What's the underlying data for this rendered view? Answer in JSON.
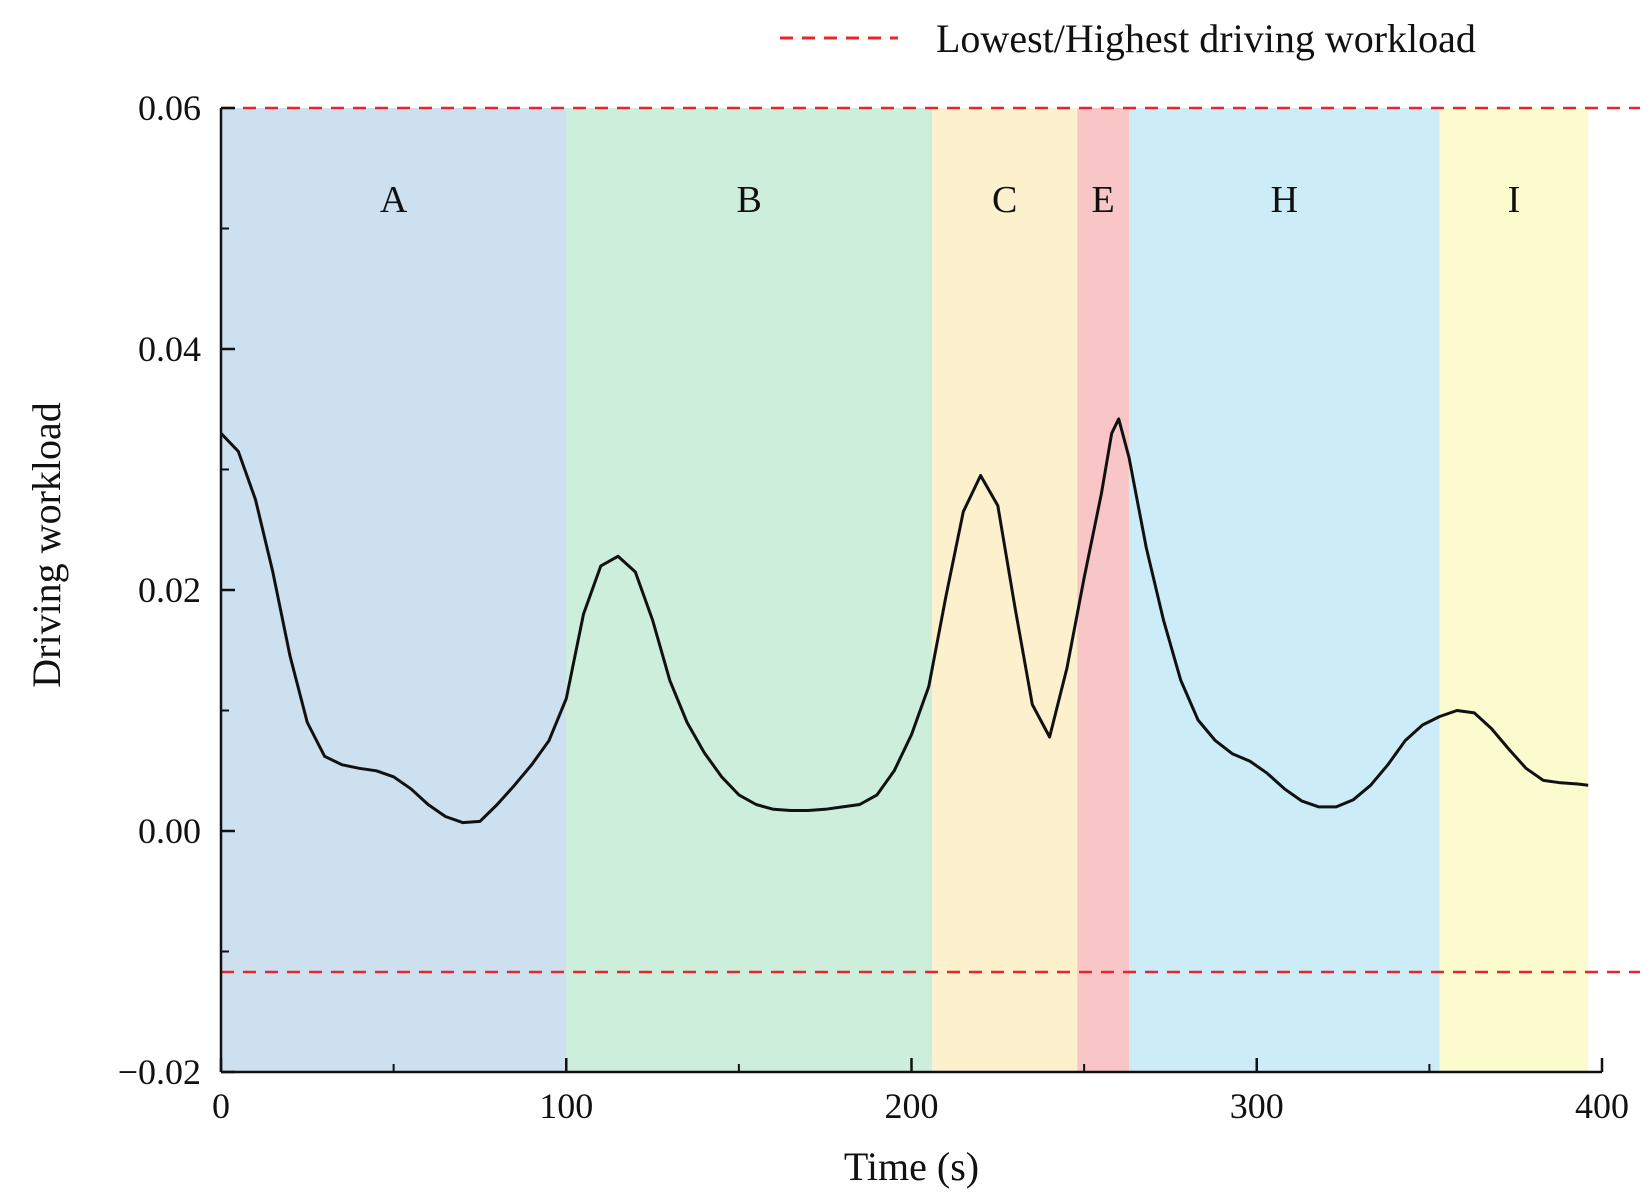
{
  "chart_data": {
    "type": "line",
    "title": "",
    "xlabel": "Time (s)",
    "ylabel": "Driving workload",
    "xlim": [
      0,
      400
    ],
    "ylim": [
      -0.02,
      0.06
    ],
    "x_ticks": [
      0,
      100,
      200,
      300,
      400
    ],
    "x_tick_labels": [
      "0",
      "100",
      "200",
      "300",
      "400"
    ],
    "y_ticks": [
      -0.02,
      0.0,
      0.02,
      0.04,
      0.06
    ],
    "y_tick_labels": [
      "−0.02",
      "0.00",
      "0.02",
      "0.04",
      "0.06"
    ],
    "grid": false,
    "legend": {
      "position": "top-right",
      "entries": [
        {
          "label": "Lowest/Highest driving workload",
          "style": "dashed",
          "color": "#e8262a"
        }
      ]
    },
    "reference_lines": [
      {
        "name": "highest",
        "y": 0.06,
        "color": "#e8262a"
      },
      {
        "name": "lowest",
        "y": -0.0117,
        "color": "#e8262a"
      }
    ],
    "regions": [
      {
        "label": "A",
        "x0": 0,
        "x1": 100,
        "color": "#cde0f0"
      },
      {
        "label": "B",
        "x0": 100,
        "x1": 206,
        "color": "#cdeedb"
      },
      {
        "label": "C",
        "x0": 206,
        "x1": 248,
        "color": "#fdf0cd"
      },
      {
        "label": "E",
        "x0": 248,
        "x1": 263,
        "color": "#f9c6c7"
      },
      {
        "label": "H",
        "x0": 263,
        "x1": 353,
        "color": "#ccecf8"
      },
      {
        "label": "I",
        "x0": 353,
        "x1": 396,
        "color": "#fbfbcd"
      }
    ],
    "series": [
      {
        "name": "Driving workload",
        "color": "#111111",
        "x": [
          0,
          5,
          10,
          15,
          20,
          25,
          30,
          35,
          40,
          45,
          50,
          55,
          60,
          65,
          70,
          75,
          80,
          85,
          90,
          95,
          100,
          105,
          110,
          115,
          120,
          125,
          130,
          135,
          140,
          145,
          150,
          155,
          160,
          165,
          170,
          175,
          180,
          185,
          190,
          195,
          200,
          205,
          210,
          215,
          220,
          225,
          230,
          235,
          240,
          245,
          250,
          255,
          258,
          260,
          263,
          268,
          273,
          278,
          283,
          288,
          293,
          298,
          303,
          308,
          313,
          318,
          323,
          328,
          333,
          338,
          343,
          348,
          353,
          358,
          363,
          368,
          373,
          378,
          383,
          388,
          393,
          396
        ],
        "y": [
          0.033,
          0.0315,
          0.0275,
          0.0215,
          0.0145,
          0.009,
          0.0062,
          0.0055,
          0.0052,
          0.005,
          0.0045,
          0.0035,
          0.0022,
          0.0012,
          0.0007,
          0.0008,
          0.0022,
          0.0038,
          0.0055,
          0.0075,
          0.011,
          0.018,
          0.022,
          0.0228,
          0.0215,
          0.0175,
          0.0125,
          0.009,
          0.0065,
          0.0045,
          0.003,
          0.0022,
          0.0018,
          0.0017,
          0.0017,
          0.0018,
          0.002,
          0.0022,
          0.003,
          0.005,
          0.008,
          0.012,
          0.0195,
          0.0265,
          0.0295,
          0.027,
          0.0185,
          0.0105,
          0.0078,
          0.0135,
          0.021,
          0.028,
          0.033,
          0.0342,
          0.031,
          0.0235,
          0.0175,
          0.0125,
          0.0092,
          0.0075,
          0.0064,
          0.0058,
          0.0048,
          0.0035,
          0.0025,
          0.002,
          0.002,
          0.0026,
          0.0038,
          0.0055,
          0.0075,
          0.0088,
          0.0095,
          0.01,
          0.0098,
          0.0085,
          0.0068,
          0.0052,
          0.0042,
          0.004,
          0.0039,
          0.0038
        ]
      }
    ]
  }
}
